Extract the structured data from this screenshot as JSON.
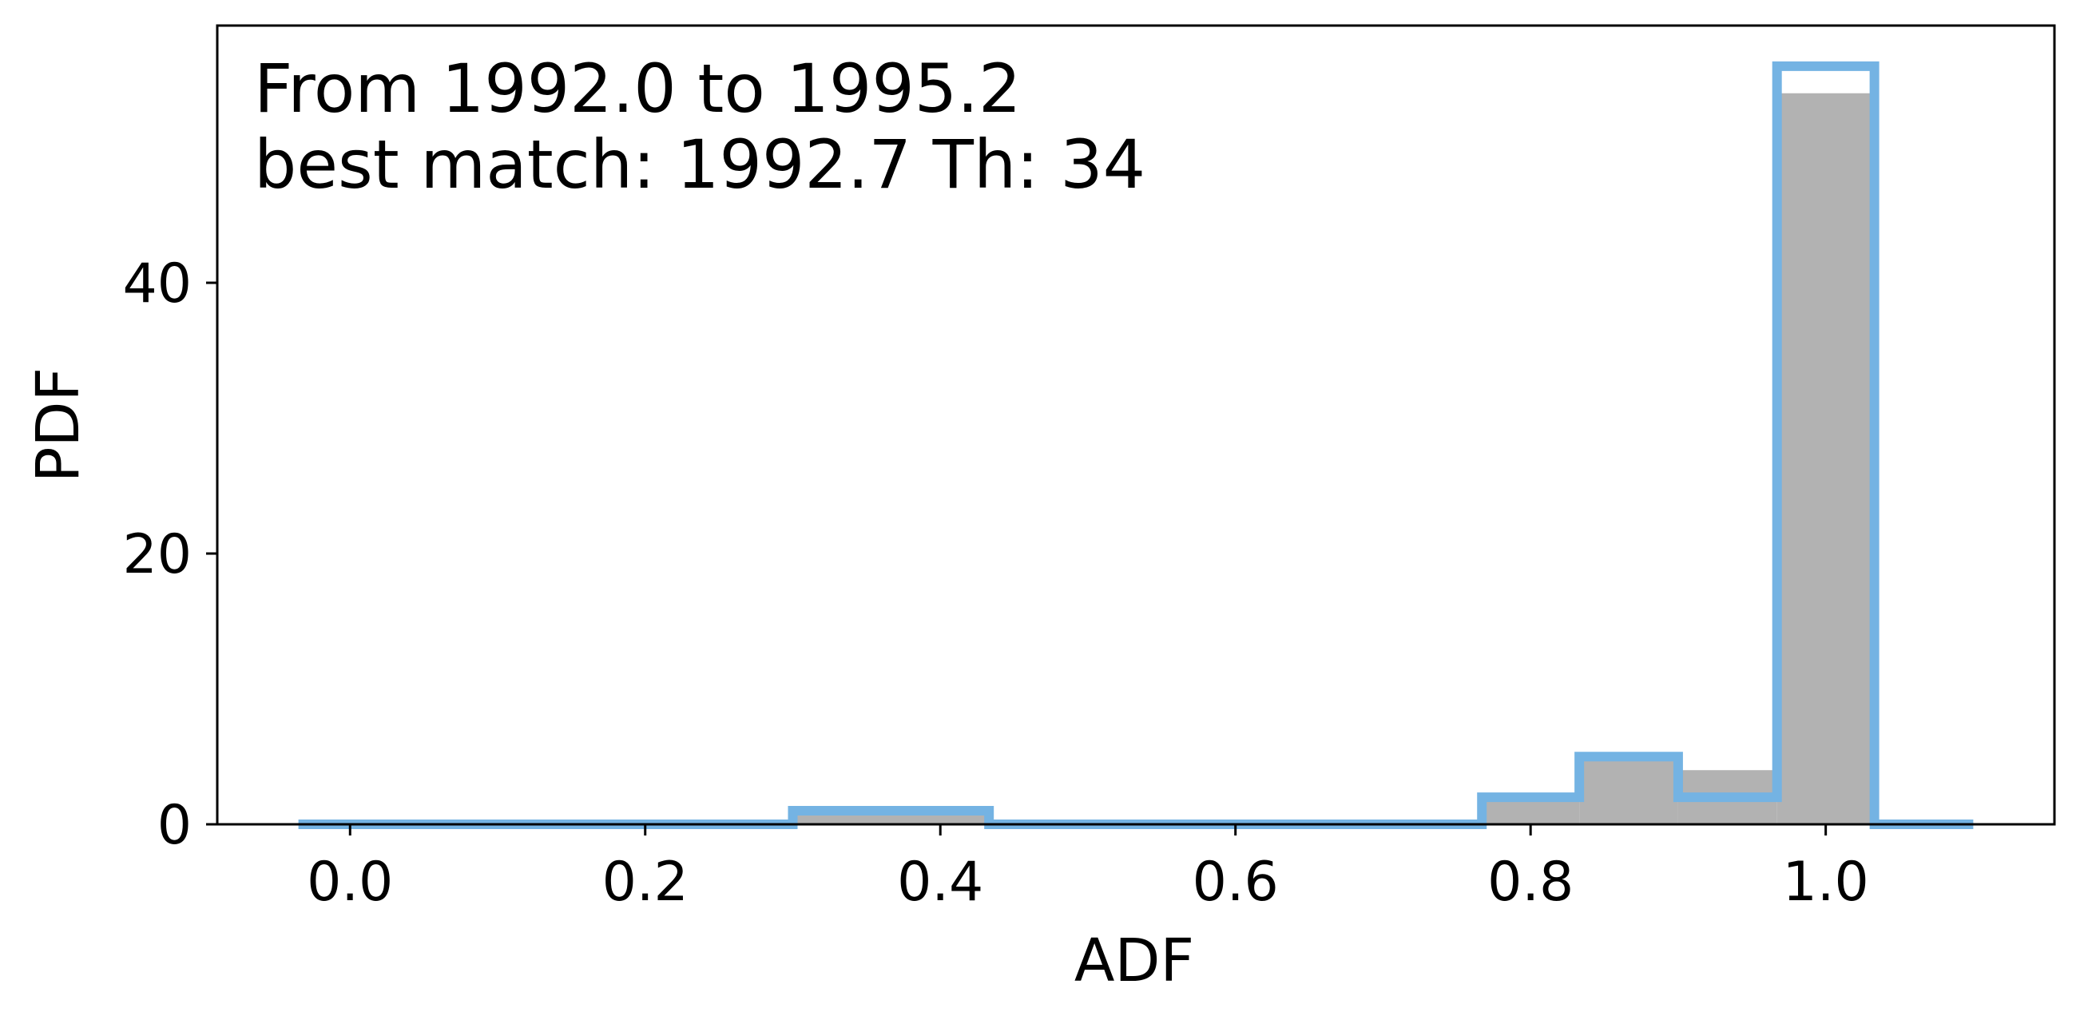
{
  "chart_data": {
    "type": "bar",
    "xlabel": "ADF",
    "ylabel": "PDF",
    "xlim": [
      -0.09,
      1.155
    ],
    "ylim": [
      0,
      59
    ],
    "xticks": [
      "0.0",
      "0.2",
      "0.4",
      "0.6",
      "0.8",
      "1.0"
    ],
    "yticks": [
      "0",
      "20",
      "40"
    ],
    "annotation_lines": [
      "From 1992.0 to 1995.2",
      "best match: 1992.7  Th: 34"
    ],
    "colors": {
      "filled": "#b2b2b2",
      "step": "#74b3e3",
      "axes": "#000000"
    },
    "grid": false,
    "series": [
      {
        "style": "filled-gray",
        "bins": [
          {
            "x0": 0.3,
            "x1": 0.433,
            "value": 1
          },
          {
            "x0": 0.767,
            "x1": 0.833,
            "value": 2
          },
          {
            "x0": 0.833,
            "x1": 0.9,
            "value": 4.7
          },
          {
            "x0": 0.9,
            "x1": 0.967,
            "value": 4
          },
          {
            "x0": 0.967,
            "x1": 1.033,
            "value": 54
          }
        ]
      },
      {
        "style": "blue-step-outline",
        "bins": [
          {
            "x0": -0.035,
            "x1": 0.3,
            "value": 0
          },
          {
            "x0": 0.3,
            "x1": 0.433,
            "value": 1
          },
          {
            "x0": 0.433,
            "x1": 0.767,
            "value": 0
          },
          {
            "x0": 0.767,
            "x1": 0.833,
            "value": 2
          },
          {
            "x0": 0.833,
            "x1": 0.9,
            "value": 5
          },
          {
            "x0": 0.9,
            "x1": 0.967,
            "value": 2
          },
          {
            "x0": 0.967,
            "x1": 1.033,
            "value": 56
          },
          {
            "x0": 1.033,
            "x1": 1.1,
            "value": 0
          }
        ]
      }
    ]
  }
}
